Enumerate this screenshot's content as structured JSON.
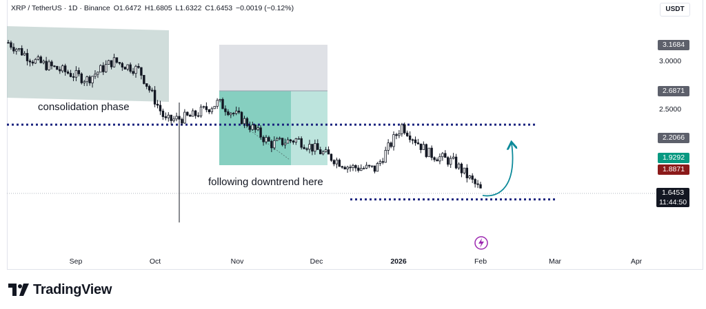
{
  "legend": {
    "symbol": "XRP / TetherUS · 1D · Binance",
    "open": "O1.6472",
    "high": "H1.6805",
    "low": "L1.6322",
    "close": "C1.6453",
    "change": "−0.0019 (−0.12%)"
  },
  "currency_button": "USDT",
  "price_scale": {
    "plain_ticks": [
      "3.0000",
      "2.5000"
    ],
    "tags": [
      {
        "label": "3.1684",
        "value": 3.1684,
        "color": "#5d606b"
      },
      {
        "label": "2.6871",
        "value": 2.6871,
        "color": "#5d606b"
      },
      {
        "label": "2.2066",
        "value": 2.2066,
        "color": "#5d606b"
      },
      {
        "label": "1.9292",
        "value": 1.9292,
        "color": "#089981"
      },
      {
        "label": "1.8871",
        "value": 1.8871,
        "color": "#8b1a1a"
      }
    ],
    "last_price": "1.6453",
    "countdown": "11:44:50"
  },
  "time_axis": [
    "Sep",
    "Oct",
    "Nov",
    "Dec",
    "2026",
    "Feb",
    "Mar",
    "Apr"
  ],
  "annotations": {
    "consolidation": "consolidation phase",
    "downtrend": "following downtrend here"
  },
  "brand": "TradingView",
  "colors": {
    "candle": "#131722",
    "dotted_line": "#1a237e",
    "consolidation_box": "#b7cbc7",
    "position_stop": "#d1d4dc",
    "position_target": "#26a69a",
    "arrow": "#0d8a9a"
  },
  "chart_data": {
    "type": "candlestick",
    "symbol": "XRP / TetherUS",
    "interval": "1D",
    "exchange": "Binance",
    "ylim": [
      1.25,
      3.45
    ],
    "x": [
      "Aug 10",
      "Aug 20",
      "Aug 30",
      "Sep 10",
      "Sep 20",
      "Oct 1",
      "Oct 10",
      "Oct 20",
      "Nov 1",
      "Nov 10",
      "Nov 20",
      "Dec 1",
      "Dec 10",
      "Dec 20",
      "Jan 1",
      "Jan 6",
      "Jan 15",
      "Jan 25",
      "Feb 1"
    ],
    "close_approx": [
      3.25,
      3.05,
      2.95,
      2.85,
      3.05,
      2.95,
      2.4,
      2.45,
      2.6,
      2.4,
      2.15,
      2.2,
      2.05,
      1.9,
      1.88,
      2.35,
      2.05,
      1.95,
      1.65
    ],
    "horizontal_levels": [
      2.36,
      1.55
    ],
    "last": {
      "open": 1.6472,
      "high": 1.6805,
      "low": 1.6322,
      "close": 1.6453,
      "change": -0.0019,
      "change_pct": -0.12
    }
  }
}
